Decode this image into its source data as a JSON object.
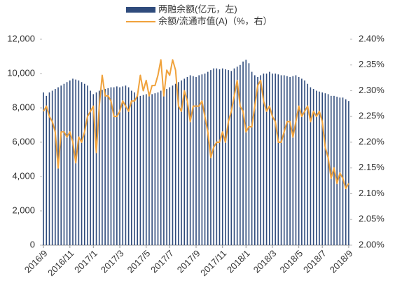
{
  "chart_data": {
    "type": "bar",
    "categories": [
      "2016/9",
      null,
      null,
      null,
      null,
      null,
      null,
      null,
      null,
      "2016/11",
      null,
      null,
      null,
      null,
      null,
      null,
      null,
      "2017/1",
      null,
      null,
      null,
      null,
      null,
      null,
      null,
      null,
      "2017/3",
      null,
      null,
      null,
      null,
      null,
      null,
      null,
      null,
      "2017/5",
      null,
      null,
      null,
      null,
      null,
      null,
      null,
      "2017/7",
      null,
      null,
      null,
      null,
      null,
      null,
      null,
      null,
      "2017/9",
      null,
      null,
      null,
      null,
      null,
      null,
      null,
      null,
      "2017/11",
      null,
      null,
      null,
      null,
      null,
      null,
      null,
      "2018/1",
      null,
      null,
      null,
      null,
      null,
      null,
      null,
      null,
      "2018/3",
      null,
      null,
      null,
      null,
      null,
      null,
      null,
      null,
      "2018/5",
      null,
      null,
      null,
      null,
      null,
      null,
      null,
      "2018/7",
      null,
      null,
      null,
      null,
      null,
      null,
      null,
      null,
      "2018/9"
    ],
    "series": [
      {
        "name": "两融余额(亿元，左)",
        "type": "bar",
        "color": "#2f4b7c",
        "values": [
          8900,
          8700,
          8900,
          9000,
          9100,
          9200,
          9300,
          9400,
          9500,
          9600,
          9700,
          9650,
          9600,
          9500,
          9400,
          9300,
          9000,
          8800,
          8900,
          9000,
          9050,
          9100,
          9150,
          9200,
          9200,
          9250,
          9200,
          9250,
          9300,
          9200,
          9000,
          8900,
          8800,
          8700,
          8750,
          8800,
          8700,
          8800,
          8850,
          8900,
          9000,
          9050,
          9100,
          9200,
          9300,
          9400,
          9500,
          9600,
          9700,
          9800,
          9900,
          9850,
          9800,
          9900,
          9950,
          10000,
          10100,
          10200,
          10300,
          10300,
          10250,
          10300,
          10250,
          10200,
          10150,
          10300,
          10400,
          10500,
          10700,
          10800,
          10600,
          10100,
          9900,
          9800,
          9900,
          10000,
          10000,
          10100,
          10000,
          10000,
          9950,
          9900,
          9900,
          9850,
          9800,
          9850,
          9900,
          9800,
          9700,
          9600,
          9400,
          9200,
          9100,
          9000,
          8950,
          8900,
          8850,
          8800,
          8700,
          8700,
          8650,
          8600,
          8600,
          8500,
          8400
        ]
      },
      {
        "name": "余额/流通市值(A)（%，右）",
        "type": "line",
        "axis": "y2",
        "color": "#f0a23c",
        "values": [
          2.26,
          2.27,
          2.25,
          2.24,
          2.22,
          2.15,
          2.22,
          2.22,
          2.21,
          2.22,
          2.2,
          2.16,
          2.21,
          2.2,
          2.22,
          2.25,
          2.26,
          2.27,
          2.18,
          2.27,
          2.33,
          2.29,
          2.29,
          2.28,
          2.25,
          2.25,
          2.26,
          2.28,
          2.27,
          2.26,
          2.28,
          2.28,
          2.29,
          2.33,
          2.3,
          2.32,
          2.29,
          2.31,
          2.31,
          2.33,
          2.36,
          2.29,
          2.34,
          2.33,
          2.36,
          2.34,
          2.27,
          2.26,
          2.3,
          2.28,
          2.24,
          2.27,
          2.27,
          2.27,
          2.28,
          2.25,
          2.22,
          2.17,
          2.19,
          2.2,
          2.2,
          2.22,
          2.2,
          2.24,
          2.26,
          2.29,
          2.32,
          2.27,
          2.26,
          2.22,
          2.23,
          2.23,
          2.27,
          2.31,
          2.32,
          2.28,
          2.26,
          2.27,
          2.25,
          2.24,
          2.2,
          2.2,
          2.22,
          2.24,
          2.24,
          2.21,
          2.24,
          2.27,
          2.25,
          2.26,
          2.27,
          2.24,
          2.26,
          2.25,
          2.26,
          2.24,
          2.19,
          2.17,
          2.13,
          2.15,
          2.12,
          2.14,
          2.13,
          2.11,
          2.12
        ]
      }
    ],
    "ylim": [
      0,
      12000
    ],
    "yticks": [
      0,
      {
        "value": 2000,
        "label": "2,000"
      },
      {
        "value": 4000,
        "label": "4,000"
      },
      {
        "value": 6000,
        "label": "6,000"
      },
      {
        "value": 8000,
        "label": "8,000"
      },
      {
        "value": 10000,
        "label": "10,000"
      },
      {
        "value": 12000,
        "label": "12,000"
      }
    ],
    "y2lim": [
      2.0,
      2.4
    ],
    "y2ticks": [
      {
        "value": 2.0,
        "label": "2.00%"
      },
      {
        "value": 2.05,
        "label": "2.05%"
      },
      {
        "value": 2.1,
        "label": "2.10%"
      },
      {
        "value": 2.15,
        "label": "2.15%"
      },
      {
        "value": 2.2,
        "label": "2.20%"
      },
      {
        "value": 2.25,
        "label": "2.25%"
      },
      {
        "value": 2.3,
        "label": "2.30%"
      },
      {
        "value": 2.35,
        "label": "2.35%"
      },
      {
        "value": 2.4,
        "label": "2.40%"
      }
    ],
    "legend": "top"
  }
}
